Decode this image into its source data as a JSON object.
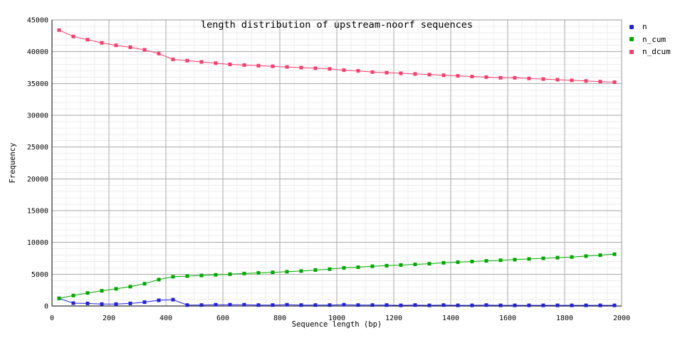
{
  "title": "length distribution of upstream-noorf sequences",
  "x_axis": {
    "label": "Sequence length (bp)"
  },
  "y_axis": {
    "label": "Frequency"
  },
  "legend": {
    "position": "top-right-outside",
    "items": [
      {
        "label": "n",
        "color": "#2222dd"
      },
      {
        "label": "n_cum",
        "color": "#00aa00"
      },
      {
        "label": "n_dcum",
        "color": "#fa3c6e"
      }
    ]
  },
  "colors": {
    "background": "#ffffff",
    "grid_major": "#aaaaaa",
    "grid_minor": "#ececec",
    "border": "#999999",
    "axis": "#000000",
    "text": "#000000"
  },
  "chart_data": {
    "type": "line",
    "title": "length distribution of upstream-noorf sequences",
    "xlabel": "Sequence length (bp)",
    "ylabel": "Frequency",
    "xlim": [
      0,
      2000
    ],
    "ylim": [
      0,
      45000
    ],
    "x_ticks": [
      0,
      200,
      400,
      600,
      800,
      1000,
      1200,
      1400,
      1600,
      1800,
      2000
    ],
    "y_ticks": [
      0,
      5000,
      10000,
      15000,
      20000,
      25000,
      30000,
      35000,
      40000,
      45000
    ],
    "grid": {
      "major": true,
      "minor": true,
      "x_minor_step": 50,
      "y_minor_step": 1000
    },
    "marker": "square",
    "legend_position": "top-right-outside",
    "x": [
      25,
      75,
      125,
      175,
      225,
      275,
      325,
      375,
      425,
      475,
      525,
      575,
      625,
      675,
      725,
      775,
      825,
      875,
      925,
      975,
      1025,
      1075,
      1125,
      1175,
      1225,
      1275,
      1325,
      1375,
      1425,
      1475,
      1525,
      1575,
      1625,
      1675,
      1725,
      1775,
      1825,
      1875,
      1925,
      1975
    ],
    "series": [
      {
        "name": "n",
        "color": "#2222dd",
        "values": [
          1200,
          450,
          400,
          300,
          300,
          400,
          600,
          900,
          1000,
          150,
          150,
          200,
          200,
          200,
          150,
          150,
          200,
          150,
          150,
          150,
          200,
          150,
          150,
          150,
          100,
          150,
          100,
          150,
          100,
          100,
          150,
          100,
          100,
          100,
          100,
          100,
          100,
          100,
          100,
          100
        ]
      },
      {
        "name": "n_cum",
        "color": "#00aa00",
        "values": [
          1200,
          1650,
          2050,
          2400,
          2700,
          3050,
          3500,
          4150,
          4600,
          4700,
          4800,
          4900,
          5000,
          5100,
          5200,
          5300,
          5400,
          5500,
          5650,
          5800,
          6000,
          6100,
          6250,
          6350,
          6450,
          6550,
          6650,
          6800,
          6900,
          7000,
          7100,
          7200,
          7300,
          7400,
          7500,
          7600,
          7700,
          7850,
          8000,
          8150
        ]
      },
      {
        "name": "n_dcum",
        "color": "#fa3c6e",
        "values": [
          43400,
          42400,
          41900,
          41400,
          41000,
          40700,
          40300,
          39700,
          38800,
          38600,
          38400,
          38200,
          38000,
          37900,
          37800,
          37700,
          37600,
          37500,
          37400,
          37300,
          37100,
          37000,
          36800,
          36700,
          36600,
          36500,
          36400,
          36300,
          36200,
          36100,
          36000,
          35900,
          35900,
          35800,
          35700,
          35600,
          35500,
          35400,
          35300,
          35200
        ]
      }
    ]
  }
}
